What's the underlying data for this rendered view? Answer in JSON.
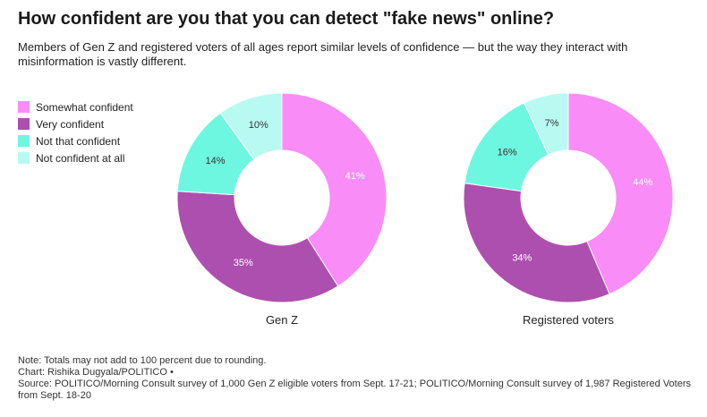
{
  "title": "How confident are you that you can detect \"fake news\" online?",
  "subtitle": "Members of Gen Z and registered voters of all ages report similar levels of confidence — but the way they interact with misinformation is vastly different.",
  "colors": {
    "Somewhat confident": "#f98cf6",
    "Very confident": "#ad4faf",
    "Not that confident": "#6ef7e0",
    "Not confident at all": "#b8faf2"
  },
  "chart_data": [
    {
      "type": "pie",
      "variant": "donut",
      "title": "Gen Z",
      "categories": [
        "Somewhat confident",
        "Very confident",
        "Not that confident",
        "Not confident at all"
      ],
      "values": [
        41,
        35,
        14,
        10
      ],
      "value_labels": [
        "41%",
        "35%",
        "14%",
        "10%"
      ],
      "legend_placement": "left"
    },
    {
      "type": "pie",
      "variant": "donut",
      "title": "Registered voters",
      "categories": [
        "Somewhat confident",
        "Very confident",
        "Not that confident",
        "Not confident at all"
      ],
      "values": [
        44,
        34,
        16,
        7
      ],
      "value_labels": [
        "44%",
        "34%",
        "16%",
        "7%"
      ],
      "legend_placement": "left"
    }
  ],
  "notes": {
    "note": "Note: Totals may not add to 100 percent due to rounding.",
    "credit": "Chart: Rishika Dugyala/POLITICO •",
    "source": "Source: POLITICO/Morning Consult survey of 1,000 Gen Z eligible voters from Sept. 17-21; POLITICO/Morning Consult survey of 1,987 Registered Voters from Sept. 18-20"
  }
}
